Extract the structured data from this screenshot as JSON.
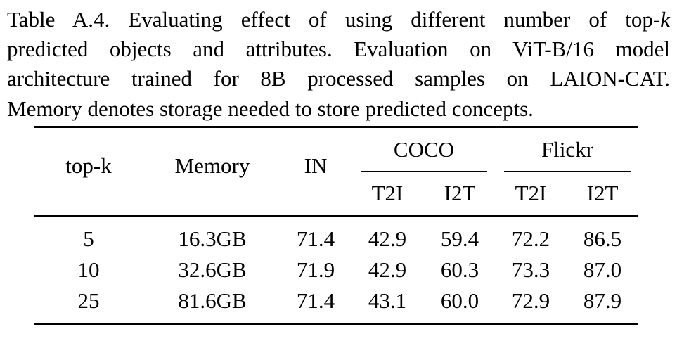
{
  "caption": {
    "lines": [
      "Table A.4.  Evaluating effect of using different number of top-",
      "predicted objects and attributes.  Evaluation on ViT-B/16 model",
      "architecture trained for 8B processed samples on LAION-CAT.",
      "Memory denotes storage needed to store predicted concepts."
    ],
    "variable": "k"
  },
  "table": {
    "header": [
      "top-k",
      "Memory",
      "IN"
    ],
    "groups": [
      {
        "name": "COCO",
        "columns": [
          "T2I",
          "I2T"
        ]
      },
      {
        "name": "Flickr",
        "columns": [
          "T2I",
          "I2T"
        ]
      }
    ],
    "rows": [
      [
        "5",
        "16.3GB",
        "71.4",
        "42.9",
        "59.4",
        "72.2",
        "86.5"
      ],
      [
        "10",
        "32.6GB",
        "71.9",
        "42.9",
        "60.3",
        "73.3",
        "87.0"
      ],
      [
        "25",
        "81.6GB",
        "71.4",
        "43.1",
        "60.0",
        "72.9",
        "87.9"
      ]
    ]
  }
}
